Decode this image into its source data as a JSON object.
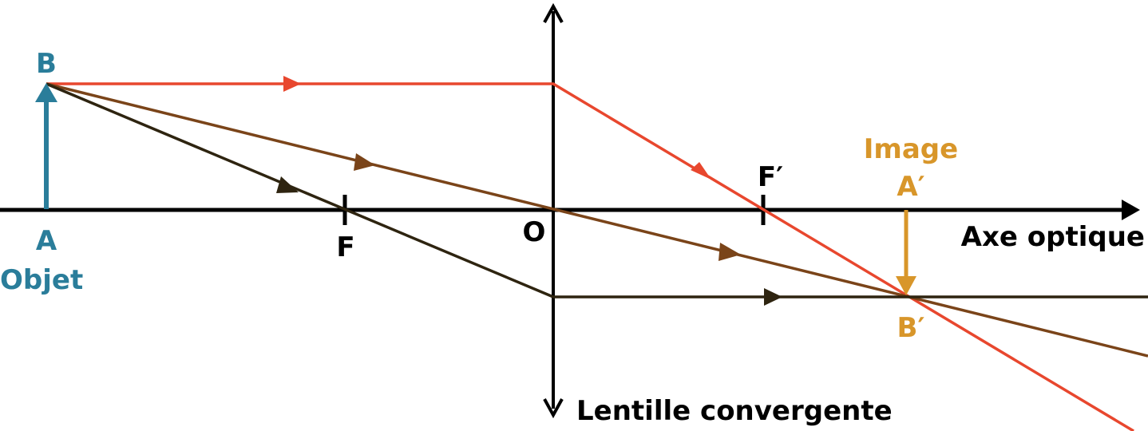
{
  "labels": {
    "point_b": "B",
    "point_a": "A",
    "objet": "Objet",
    "point_f": "F",
    "point_o": "O",
    "point_f_prime": "F′",
    "image": "Image",
    "point_a_prime": "A′",
    "point_b_prime": "B′",
    "axe_optique": "Axe optique",
    "lentille": "Lentille convergente"
  },
  "colors": {
    "axis": "#000000",
    "object": "#2a7d9a",
    "image": "#d8962a",
    "ray_parallel": "#e8472e",
    "ray_center": "#7a4419",
    "ray_focal": "#2e2410",
    "text": "#000000"
  }
}
